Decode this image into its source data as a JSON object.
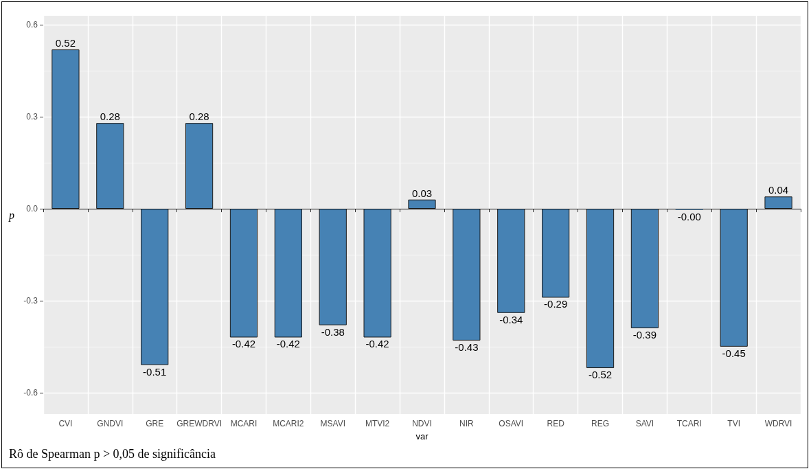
{
  "chart_data": {
    "type": "bar",
    "xlabel": "var",
    "ylabel": "p",
    "categories": [
      "CVI",
      "GNDVI",
      "GRE",
      "GREWDRVI",
      "MCARI",
      "MCARI2",
      "MSAVI",
      "MTVI2",
      "NDVI",
      "NIR",
      "OSAVI",
      "RED",
      "REG",
      "SAVI",
      "TCARI",
      "TVI",
      "WDRVI"
    ],
    "values": [
      0.52,
      0.28,
      -0.51,
      0.28,
      -0.42,
      -0.42,
      -0.38,
      -0.42,
      0.03,
      -0.43,
      -0.34,
      -0.29,
      -0.52,
      -0.39,
      -0.004,
      -0.45,
      0.04
    ],
    "value_labels": [
      "0.52",
      "0.28",
      "-0.51",
      "0.28",
      "-0.42",
      "-0.42",
      "-0.38",
      "-0.42",
      "0.03",
      "-0.43",
      "-0.34",
      "-0.29",
      "-0.52",
      "-0.39",
      "-0.00",
      "-0.45",
      "0.04"
    ],
    "color": "#4682b4",
    "ylim": [
      -0.67,
      0.63
    ],
    "yticks": [
      {
        "value": -0.6,
        "label": "-0.6"
      },
      {
        "value": -0.3,
        "label": "-0.3"
      },
      {
        "value": 0,
        "label": "0.0"
      },
      {
        "value": 0.3,
        "label": "0.3"
      },
      {
        "value": 0.6,
        "label": "0.6"
      }
    ],
    "grid": true,
    "ref_lines": [
      {
        "axis": "y",
        "value": 0,
        "color": "#000000"
      }
    ],
    "annotations": [
      "Rô de Spearman p > 0,05 de significância"
    ]
  }
}
